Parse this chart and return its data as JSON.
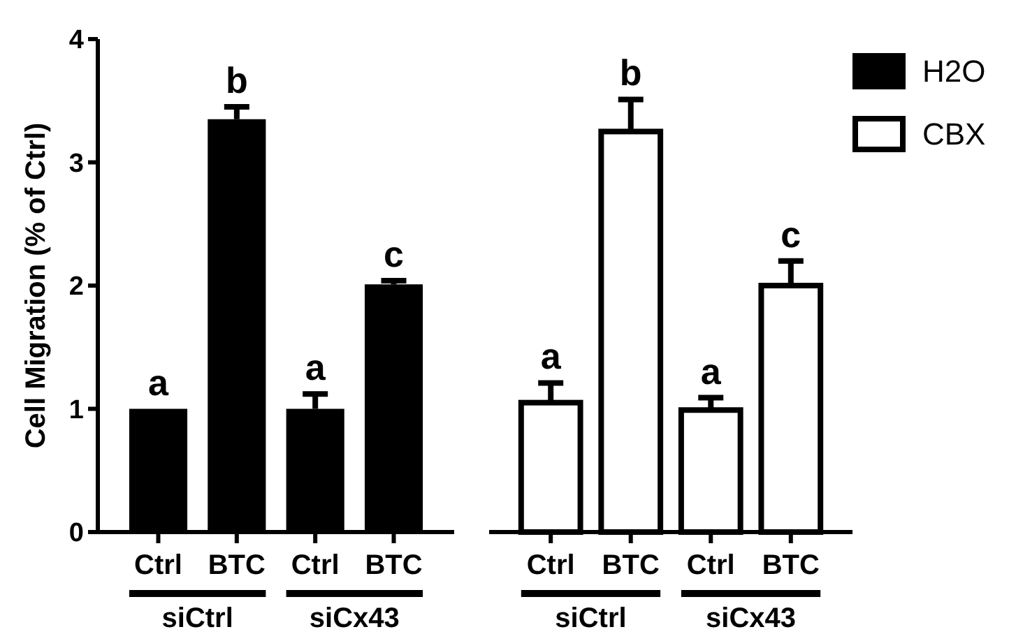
{
  "chart_data": [
    {
      "type": "bar",
      "ylabel": "Cell Migration (% of Ctrl)",
      "categories": [
        "Ctrl",
        "BTC",
        "Ctrl",
        "BTC"
      ],
      "series": [
        {
          "name": "H2O",
          "color": "#000000",
          "values": [
            1.0,
            3.35,
            1.0,
            2.01
          ],
          "errors": [
            null,
            0.1,
            0.12,
            0.03
          ]
        }
      ],
      "ylim": [
        0,
        4
      ],
      "yticks": [
        0,
        1,
        2,
        3,
        4
      ],
      "legend": "top right",
      "annotations": [
        "a",
        "b",
        "a",
        "c",
        "siCtrl",
        "siCx43"
      ]
    },
    {
      "type": "bar",
      "categories": [
        "Ctrl",
        "BTC",
        "Ctrl",
        "BTC"
      ],
      "series": [
        {
          "name": "CBX",
          "color": "#ffffff",
          "values": [
            1.05,
            3.25,
            0.99,
            2.0
          ],
          "errors": [
            0.16,
            0.26,
            0.1,
            0.2
          ]
        }
      ],
      "ylim": [
        0,
        4
      ],
      "yticks": [
        0,
        1,
        2,
        3,
        4
      ],
      "tick_labels": "x",
      "legend": "top right",
      "annotations": [
        "a",
        "b",
        "a",
        "c",
        "siCtrl",
        "siCx43"
      ]
    }
  ]
}
